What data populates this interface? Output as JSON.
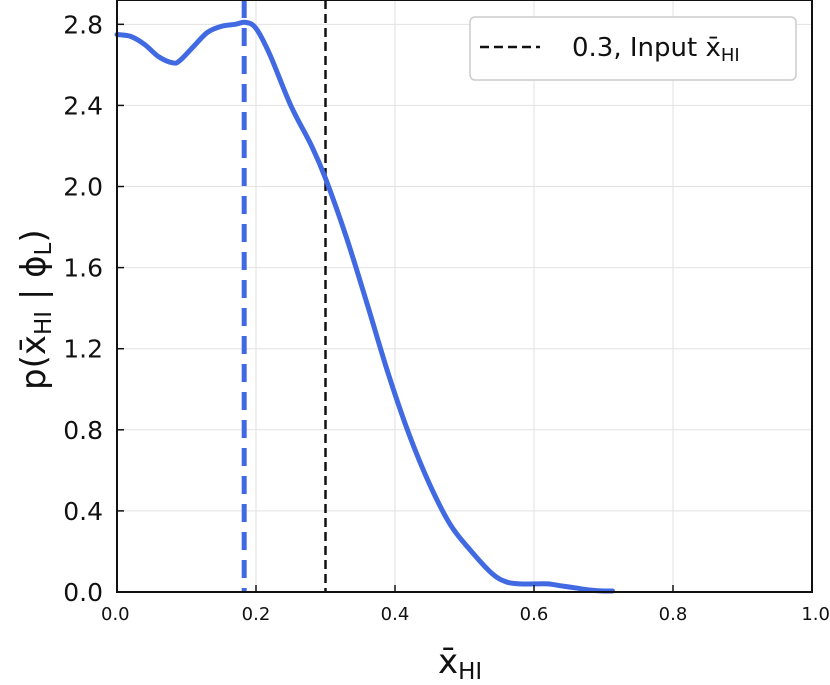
{
  "chart_data": {
    "type": "line",
    "xlabel": "x̄",
    "xlabel_sub": "HI",
    "ylabel": "p(x̄",
    "ylabel_sub": "HI",
    "ylabel_mid": " | ϕ",
    "ylabel_sub2": "L",
    "ylabel_end": ")",
    "xlim": [
      0.0,
      1.0
    ],
    "ylim": [
      0.0,
      2.92
    ],
    "xticks": [
      "0.0",
      "0.2",
      "0.4",
      "0.6",
      "0.8",
      "1.0"
    ],
    "xtick_values": [
      0.0,
      0.2,
      0.4,
      0.6,
      0.8,
      1.0
    ],
    "yticks": [
      "0.0",
      "0.4",
      "0.8",
      "1.2",
      "1.6",
      "2.0",
      "2.4",
      "2.8"
    ],
    "ytick_values": [
      0.0,
      0.4,
      0.8,
      1.2,
      1.6,
      2.0,
      2.4,
      2.8
    ],
    "grid": true,
    "legend_position": "top-right",
    "series": [
      {
        "color": "#4169e1",
        "x": [
          0.0,
          0.02,
          0.04,
          0.06,
          0.08,
          0.09,
          0.11,
          0.13,
          0.15,
          0.17,
          0.185,
          0.2,
          0.22,
          0.25,
          0.28,
          0.3,
          0.33,
          0.36,
          0.39,
          0.42,
          0.45,
          0.48,
          0.51,
          0.54,
          0.56,
          0.58,
          0.6,
          0.62,
          0.64,
          0.66,
          0.68,
          0.7,
          0.713
        ],
        "y": [
          2.75,
          2.74,
          2.7,
          2.64,
          2.61,
          2.62,
          2.69,
          2.76,
          2.79,
          2.8,
          2.81,
          2.78,
          2.65,
          2.4,
          2.2,
          2.04,
          1.75,
          1.42,
          1.08,
          0.78,
          0.53,
          0.33,
          0.2,
          0.09,
          0.05,
          0.04,
          0.04,
          0.04,
          0.03,
          0.02,
          0.01,
          0.005,
          0.005
        ]
      }
    ],
    "vlines": [
      {
        "x": 0.183,
        "color": "#4169e1",
        "style": "dashed-thick"
      },
      {
        "x": 0.3,
        "color": "#111111",
        "style": "dashed",
        "label_main": "0.3, Input x̄",
        "label_sub": "HI"
      }
    ]
  }
}
